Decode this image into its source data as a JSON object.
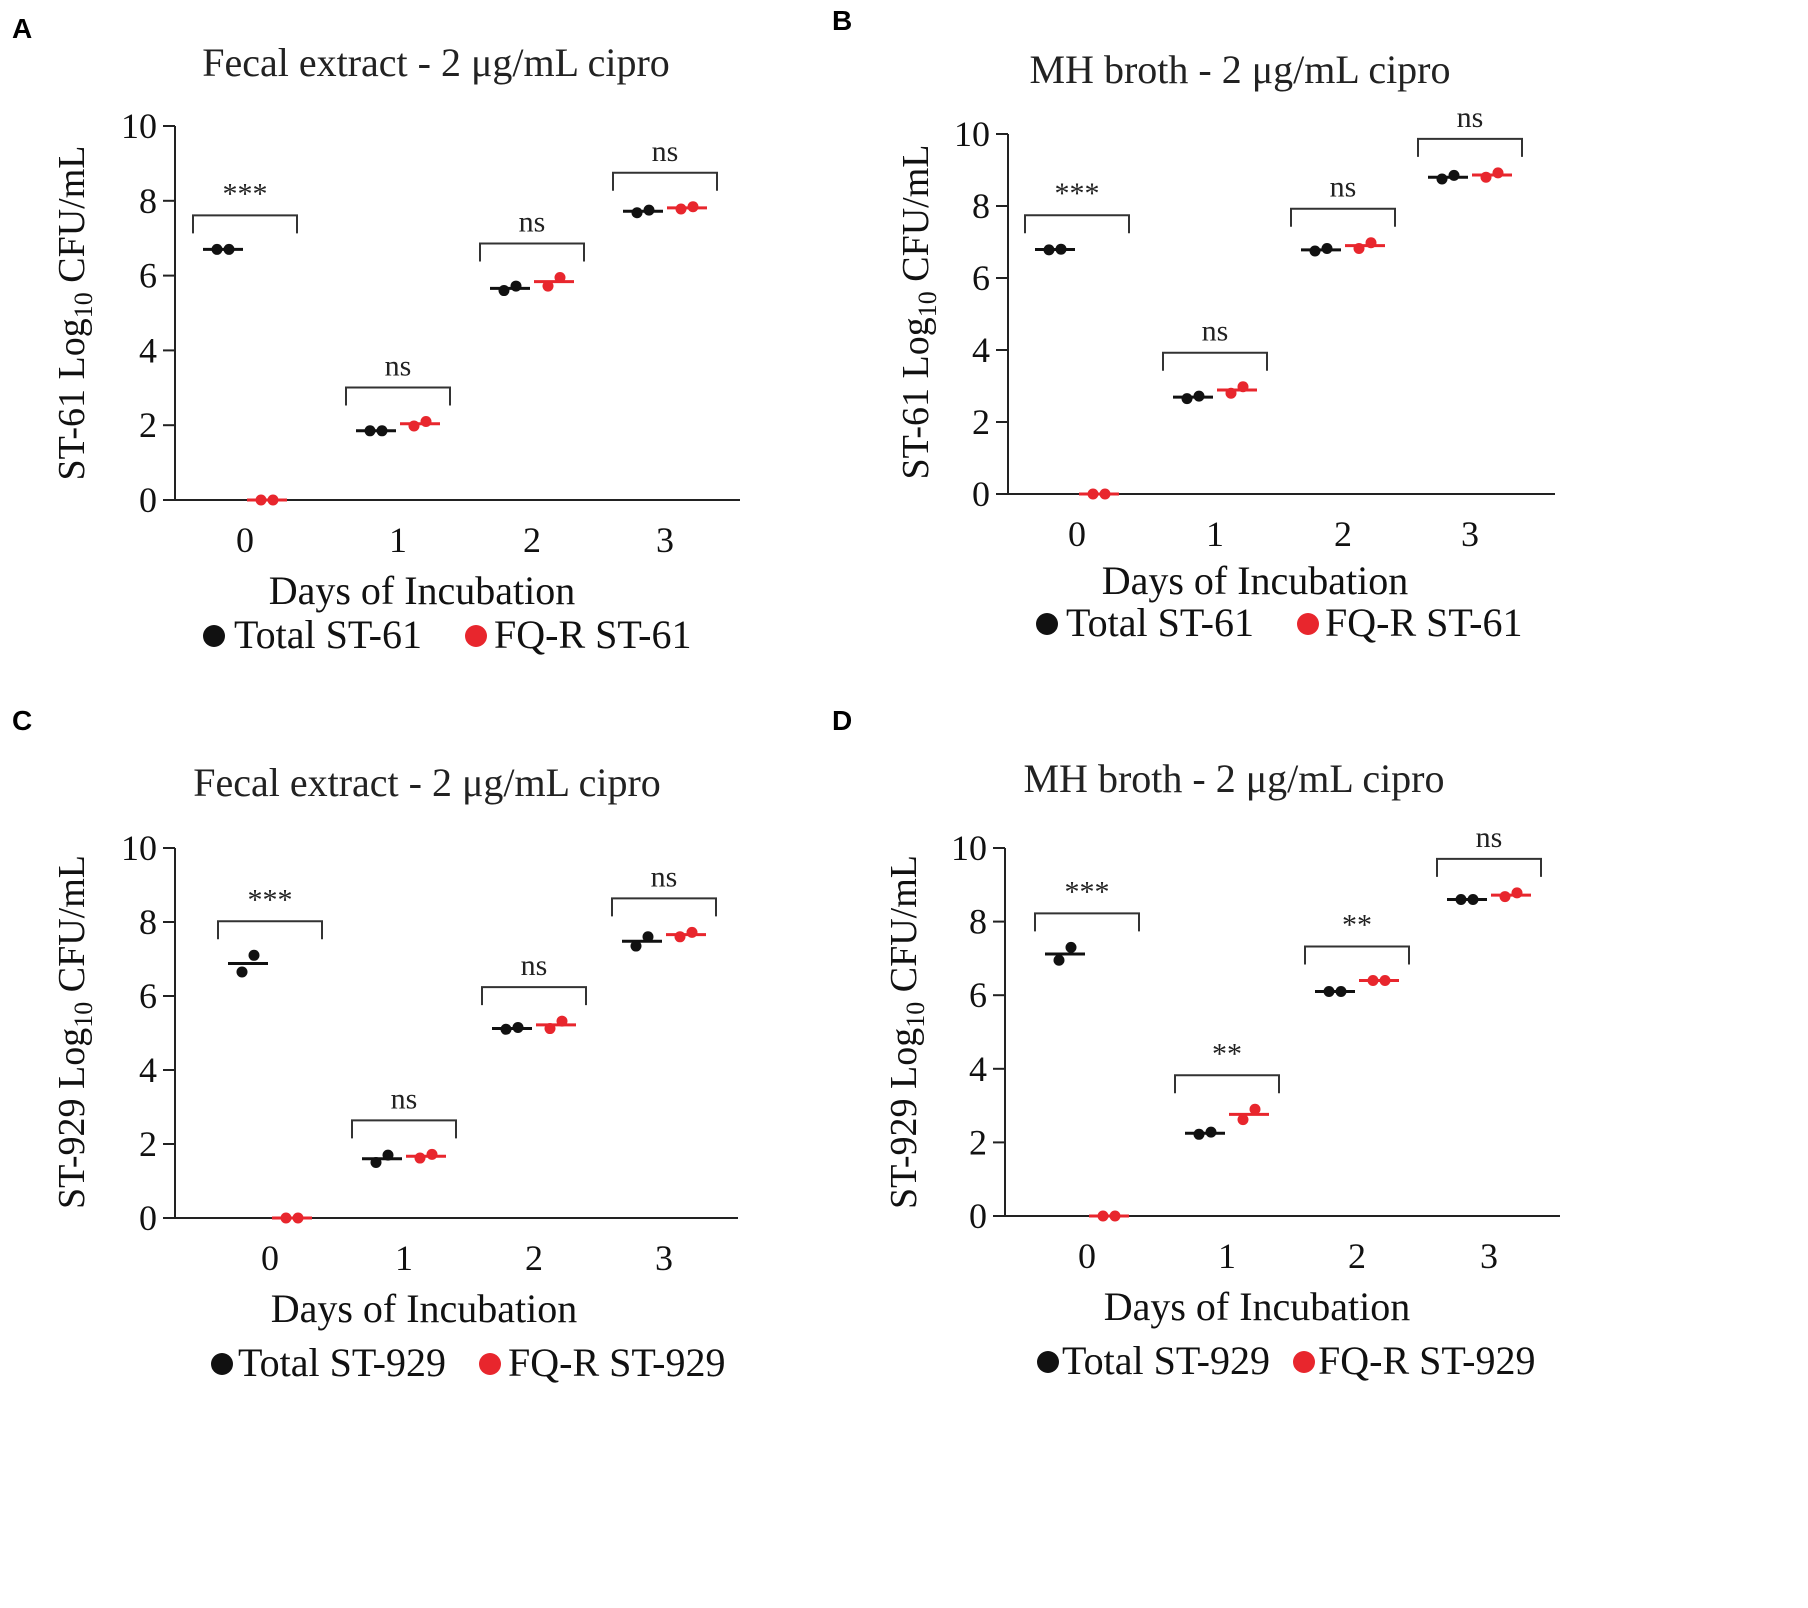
{
  "colors": {
    "total": "#111111",
    "fqr": "#e8262d"
  },
  "chart_data": [
    {
      "panel": "A",
      "type": "scatter",
      "title": "Fecal extract - 2 μg/mL cipro",
      "ylabel_prefix": "ST-61 Log",
      "ylabel_sub": "10",
      "ylabel_suffix": " CFU/mL",
      "xlabel": "Days of Incubation",
      "categories": [
        "0",
        "1",
        "2",
        "3"
      ],
      "yticks": [
        "0",
        "2",
        "4",
        "6",
        "8",
        "10"
      ],
      "ylim": [
        0,
        10
      ],
      "series": [
        {
          "name": "Total ST-61",
          "color": "#111111",
          "points": [
            [
              6.7,
              6.7
            ],
            [
              1.85,
              1.85
            ],
            [
              5.6,
              5.72
            ],
            [
              7.68,
              7.75
            ]
          ],
          "means": [
            6.7,
            1.85,
            5.66,
            7.72
          ]
        },
        {
          "name": "FQ-R ST-61",
          "color": "#e8262d",
          "points": [
            [
              0,
              0
            ],
            [
              1.98,
              2.1
            ],
            [
              5.72,
              5.95
            ],
            [
              7.78,
              7.84
            ]
          ],
          "means": [
            0,
            2.04,
            5.84,
            7.81
          ]
        }
      ],
      "significance": [
        "***",
        "ns",
        "ns",
        "ns"
      ],
      "legend": [
        "Total ST-61",
        "FQ-R ST-61"
      ]
    },
    {
      "panel": "B",
      "type": "scatter",
      "title": "MH broth - 2 μg/mL cipro",
      "ylabel_prefix": "ST-61 Log",
      "ylabel_sub": "10",
      "ylabel_suffix": " CFU/mL",
      "xlabel": "Days of Incubation",
      "categories": [
        "0",
        "1",
        "2",
        "3"
      ],
      "yticks": [
        "0",
        "2",
        "4",
        "6",
        "8",
        "10"
      ],
      "ylim": [
        0,
        10
      ],
      "series": [
        {
          "name": "Total ST-61",
          "color": "#111111",
          "points": [
            [
              6.78,
              6.8
            ],
            [
              2.65,
              2.72
            ],
            [
              6.75,
              6.82
            ],
            [
              8.75,
              8.85
            ]
          ],
          "means": [
            6.79,
            2.69,
            6.78,
            8.8
          ]
        },
        {
          "name": "FQ-R ST-61",
          "color": "#e8262d",
          "points": [
            [
              0,
              0
            ],
            [
              2.8,
              2.98
            ],
            [
              6.82,
              6.98
            ],
            [
              8.8,
              8.92
            ]
          ],
          "means": [
            0,
            2.89,
            6.9,
            8.86
          ]
        }
      ],
      "significance": [
        "***",
        "ns",
        "ns",
        "ns"
      ],
      "legend": [
        "Total ST-61",
        "FQ-R ST-61"
      ]
    },
    {
      "panel": "C",
      "type": "scatter",
      "title": "Fecal extract - 2 μg/mL cipro",
      "ylabel_prefix": "ST-929 Log",
      "ylabel_sub": "10",
      "ylabel_suffix": " CFU/mL",
      "xlabel": "Days of Incubation",
      "categories": [
        "0",
        "1",
        "2",
        "3"
      ],
      "yticks": [
        "0",
        "2",
        "4",
        "6",
        "8",
        "10"
      ],
      "ylim": [
        0,
        10
      ],
      "series": [
        {
          "name": "Total ST-929",
          "color": "#111111",
          "points": [
            [
              6.65,
              7.1
            ],
            [
              1.5,
              1.7
            ],
            [
              5.1,
              5.15
            ],
            [
              7.35,
              7.6
            ]
          ],
          "means": [
            6.88,
            1.6,
            5.12,
            7.48
          ]
        },
        {
          "name": "FQ-R ST-929",
          "color": "#e8262d",
          "points": [
            [
              0,
              0
            ],
            [
              1.62,
              1.72
            ],
            [
              5.12,
              5.32
            ],
            [
              7.6,
              7.72
            ]
          ],
          "means": [
            0,
            1.67,
            5.22,
            7.66
          ]
        }
      ],
      "significance": [
        "***",
        "ns",
        "ns",
        "ns"
      ],
      "legend": [
        "Total ST-929",
        "FQ-R ST-929"
      ]
    },
    {
      "panel": "D",
      "type": "scatter",
      "title": "MH broth - 2 μg/mL cipro",
      "ylabel_prefix": "ST-929 Log",
      "ylabel_sub": "10",
      "ylabel_suffix": " CFU/mL",
      "xlabel": "Days of Incubation",
      "categories": [
        "0",
        "1",
        "2",
        "3"
      ],
      "yticks": [
        "0",
        "2",
        "4",
        "6",
        "8",
        "10"
      ],
      "ylim": [
        0,
        10
      ],
      "series": [
        {
          "name": "Total ST-929",
          "color": "#111111",
          "points": [
            [
              6.95,
              7.3
            ],
            [
              2.22,
              2.28
            ],
            [
              6.1,
              6.1
            ],
            [
              8.6,
              8.6
            ]
          ],
          "means": [
            7.12,
            2.25,
            6.1,
            8.6
          ]
        },
        {
          "name": "FQ-R ST-929",
          "color": "#e8262d",
          "points": [
            [
              0,
              0
            ],
            [
              2.62,
              2.9
            ],
            [
              6.4,
              6.4
            ],
            [
              8.68,
              8.78
            ]
          ],
          "means": [
            0,
            2.76,
            6.4,
            8.72
          ]
        }
      ],
      "significance": [
        "***",
        "**",
        "**",
        "ns"
      ],
      "legend": [
        "Total ST-929",
        "FQ-R ST-929"
      ]
    }
  ]
}
